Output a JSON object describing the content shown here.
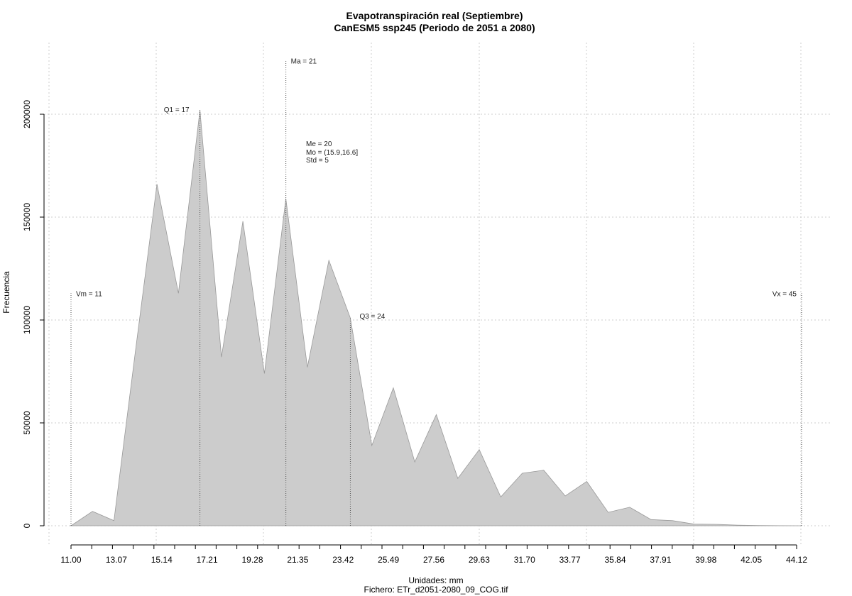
{
  "chart_data": {
    "type": "area",
    "title": "Evapotranspiración real (Septiembre)",
    "subtitle": "CanESM5 ssp245 (Periodo de 2051 a 2080)",
    "xlabel": "Unidades: mm",
    "caption": "Fichero: ETr_d2051-2080_09_COG.tif",
    "ylabel": "Frecuencia",
    "grid": true,
    "fill_color": "#cccccc",
    "line_color": "#999999",
    "xlim": [
      11.0,
      45.0
    ],
    "ylim": [
      0,
      225000
    ],
    "x_ticks": [
      "11.00",
      "13.07",
      "15.14",
      "17.21",
      "19.28",
      "21.35",
      "23.42",
      "25.49",
      "27.56",
      "29.63",
      "31.70",
      "33.77",
      "35.84",
      "37.91",
      "39.98",
      "42.05",
      "44.12"
    ],
    "y_ticks": [
      "0",
      "50000",
      "100000",
      "150000",
      "200000"
    ],
    "x": [
      11.0,
      12.0,
      13.0,
      14.0,
      15.0,
      16.0,
      17.0,
      18.0,
      19.0,
      20.0,
      21.0,
      22.0,
      23.0,
      24.0,
      25.0,
      26.0,
      27.0,
      28.0,
      29.0,
      30.0,
      31.0,
      32.0,
      33.0,
      34.0,
      35.0,
      36.0,
      37.0,
      38.0,
      39.0,
      40.0,
      41.0,
      42.0,
      43.0,
      44.0,
      45.0
    ],
    "y": [
      0,
      7000,
      2500,
      85000,
      166000,
      113000,
      202000,
      82000,
      148000,
      74000,
      159000,
      77000,
      129000,
      101000,
      39000,
      67000,
      31000,
      54000,
      23000,
      37000,
      14000,
      25500,
      27000,
      14500,
      21500,
      6500,
      9000,
      3000,
      2500,
      800,
      700,
      300,
      100,
      50,
      0
    ],
    "markers": [
      {
        "label": "Vm = 11",
        "x": 11.0,
        "value": 113000
      },
      {
        "label": "Q1 = 17",
        "x": 17.0,
        "value": 202000
      },
      {
        "label": "Ma = 21",
        "x": 21.0,
        "value": 226000
      },
      {
        "label": "Q3 = 24",
        "x": 24.0,
        "value": 101000
      },
      {
        "label": "Vx = 45",
        "x": 45.0,
        "value": 113000
      }
    ],
    "stats": [
      "Me = 20",
      "Mo = (15.9,16.6]",
      "Std = 5"
    ]
  }
}
